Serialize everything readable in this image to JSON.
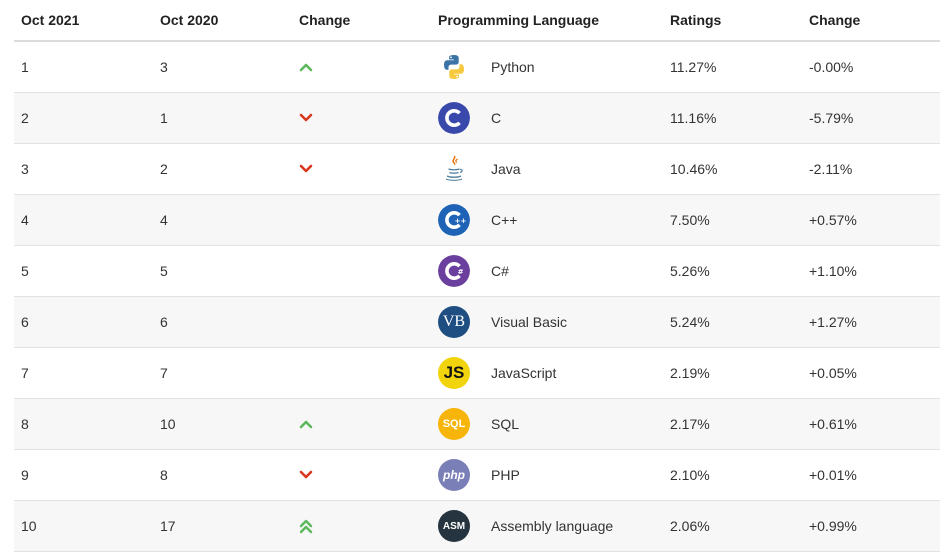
{
  "headers": {
    "current_month": "Oct 2021",
    "previous_month": "Oct 2020",
    "change_icon": "Change",
    "language": "Programming Language",
    "ratings": "Ratings",
    "change": "Change"
  },
  "colors": {
    "up_arrow": "#5cb85c",
    "down_arrow": "#d9381e",
    "row_alt_bg": "#f7f7f7",
    "border": "#e2e2e2"
  },
  "rows": [
    {
      "current": "1",
      "previous": "3",
      "trend": "up",
      "trend_icon": "chevron-up-icon",
      "language": "Python",
      "logo": "python-logo",
      "rating": "11.27%",
      "change": "-0.00%"
    },
    {
      "current": "2",
      "previous": "1",
      "trend": "down",
      "trend_icon": "chevron-down-icon",
      "language": "C",
      "logo": "c-logo",
      "rating": "11.16%",
      "change": "-5.79%"
    },
    {
      "current": "3",
      "previous": "2",
      "trend": "down",
      "trend_icon": "chevron-down-icon",
      "language": "Java",
      "logo": "java-logo",
      "rating": "10.46%",
      "change": "-2.11%"
    },
    {
      "current": "4",
      "previous": "4",
      "trend": "none",
      "trend_icon": "",
      "language": "C++",
      "logo": "cpp-logo",
      "rating": "7.50%",
      "change": "+0.57%"
    },
    {
      "current": "5",
      "previous": "5",
      "trend": "none",
      "trend_icon": "",
      "language": "C#",
      "logo": "csharp-logo",
      "rating": "5.26%",
      "change": "+1.10%"
    },
    {
      "current": "6",
      "previous": "6",
      "trend": "none",
      "trend_icon": "",
      "language": "Visual Basic",
      "logo": "vb-logo",
      "logo_text": "VB",
      "rating": "5.24%",
      "change": "+1.27%"
    },
    {
      "current": "7",
      "previous": "7",
      "trend": "none",
      "trend_icon": "",
      "language": "JavaScript",
      "logo": "js-logo",
      "logo_text": "JS",
      "rating": "2.19%",
      "change": "+0.05%"
    },
    {
      "current": "8",
      "previous": "10",
      "trend": "up",
      "trend_icon": "chevron-up-icon",
      "language": "SQL",
      "logo": "sql-logo",
      "logo_text": "SQL",
      "rating": "2.17%",
      "change": "+0.61%"
    },
    {
      "current": "9",
      "previous": "8",
      "trend": "down",
      "trend_icon": "chevron-down-icon",
      "language": "PHP",
      "logo": "php-logo",
      "logo_text": "php",
      "rating": "2.10%",
      "change": "+0.01%"
    },
    {
      "current": "10",
      "previous": "17",
      "trend": "double-up",
      "trend_icon": "double-chevron-up-icon",
      "language": "Assembly language",
      "logo": "asm-logo",
      "logo_text": "ASM",
      "rating": "2.06%",
      "change": "+0.99%"
    }
  ]
}
